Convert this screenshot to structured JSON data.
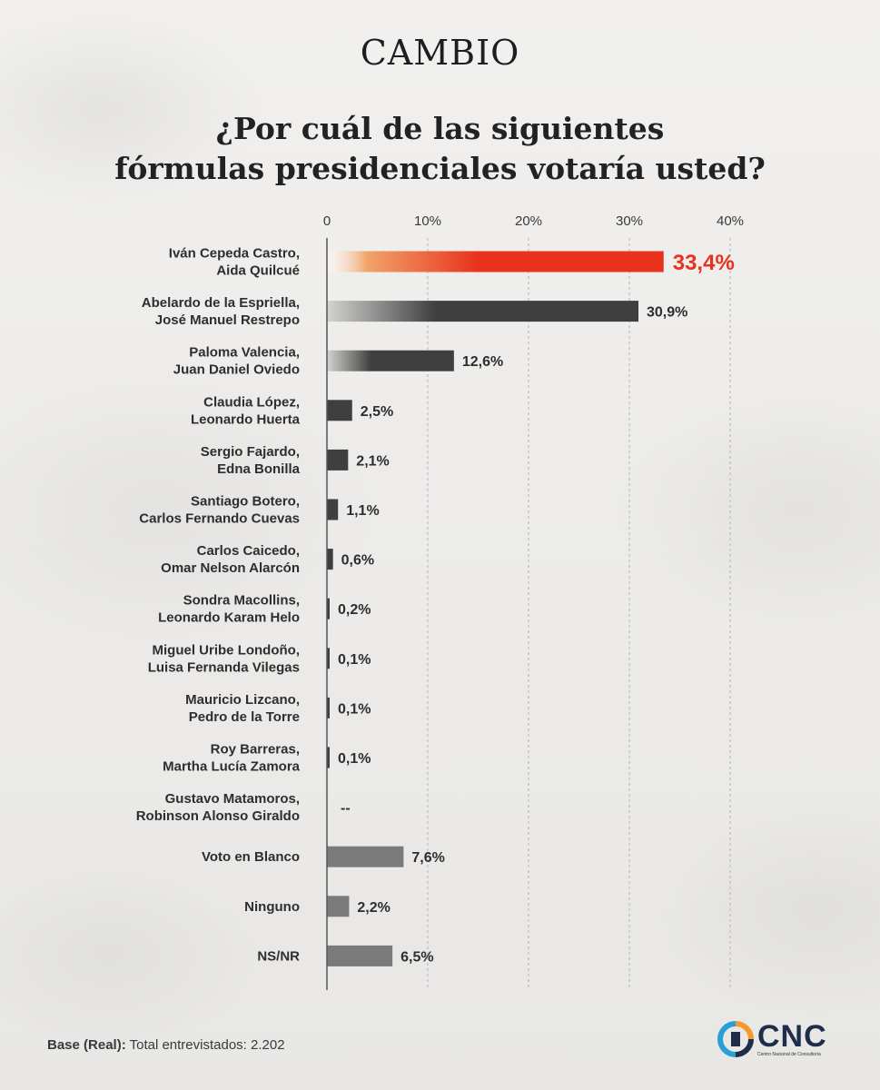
{
  "brand": "CAMBIO",
  "title_lines": [
    "¿Por cuál de las siguientes",
    "fórmulas presidenciales votaría usted?"
  ],
  "chart_data": {
    "type": "bar",
    "orientation": "horizontal",
    "xlim": [
      0,
      40
    ],
    "ticks": [
      "0",
      "10%",
      "20%",
      "30%",
      "40%"
    ],
    "grid": true,
    "categories": [
      [
        "Iván Cepeda Castro,",
        "Aida Quilcué"
      ],
      [
        "Abelardo de la Espriella,",
        "José Manuel Restrepo"
      ],
      [
        "Paloma Valencia,",
        "Juan Daniel Oviedo"
      ],
      [
        "Claudia López,",
        "Leonardo Huerta"
      ],
      [
        "Sergio Fajardo,",
        "Edna Bonilla"
      ],
      [
        "Santiago Botero,",
        "Carlos Fernando Cuevas"
      ],
      [
        "Carlos Caicedo,",
        "Omar Nelson Alarcón"
      ],
      [
        "Sondra Macollins,",
        "Leonardo Karam Helo"
      ],
      [
        "Miguel Uribe Londoño,",
        "Luisa Fernanda Vilegas"
      ],
      [
        "Mauricio Lizcano,",
        "Pedro de la Torre"
      ],
      [
        "Roy Barreras,",
        "Martha Lucía Zamora"
      ],
      [
        "Gustavo Matamoros,",
        "Robinson Alonso Giraldo"
      ],
      [
        "Voto en Blanco"
      ],
      [
        "Ninguno"
      ],
      [
        "NS/NR"
      ]
    ],
    "values": [
      33.4,
      30.9,
      12.6,
      2.5,
      2.1,
      1.1,
      0.6,
      0.2,
      0.1,
      0.1,
      0.1,
      null,
      7.6,
      2.2,
      6.5
    ],
    "value_labels": [
      "33,4%",
      "30,9%",
      "12,6%",
      "2,5%",
      "2,1%",
      "1,1%",
      "0,6%",
      "0,2%",
      "0,1%",
      "0,1%",
      "0,1%",
      "--",
      "7,6%",
      "2,2%",
      "6,5%"
    ],
    "bar_styles": [
      "highlight",
      "dark",
      "dark",
      "dark",
      "dark",
      "dark",
      "dark",
      "dark",
      "dark",
      "dark",
      "dark",
      "none",
      "gray",
      "gray",
      "gray"
    ],
    "colors": {
      "highlight": "#e8321e",
      "highlight_start": "#f2a36a",
      "dark": "#3f3f3f",
      "gray": "#7a7a7a",
      "label_highlight": "#e8321e"
    }
  },
  "footer": {
    "base_label": "Base (Real):",
    "base_text": " Total entrevistados: 2.202"
  },
  "logo": {
    "name": "CNC",
    "subtitle": "Centro Nacional de Consultoría"
  }
}
